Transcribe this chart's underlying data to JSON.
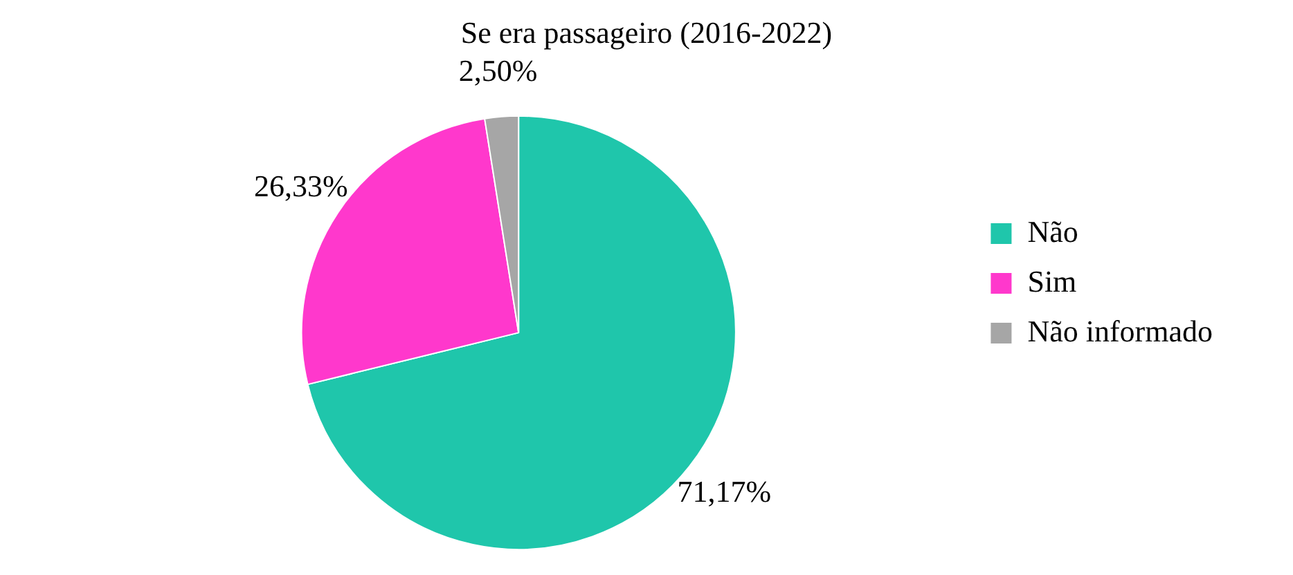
{
  "chart_data": {
    "type": "pie",
    "title": "Se era passageiro (2016-2022)",
    "categories": [
      "Não",
      "Sim",
      "Não informado"
    ],
    "values": [
      71.17,
      26.33,
      2.5
    ],
    "colors": [
      "#1fc6ab",
      "#ff38cc",
      "#a6a6a6"
    ],
    "value_labels": [
      "71,17%",
      "26,33%",
      "2,50%"
    ],
    "legend": "right"
  }
}
